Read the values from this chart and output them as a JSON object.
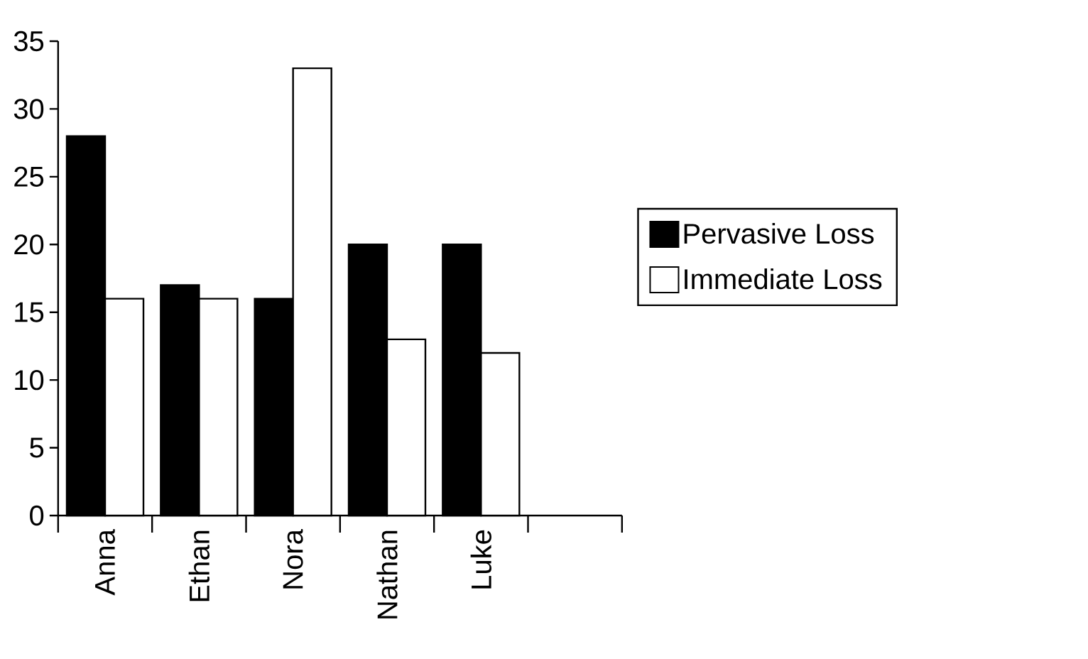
{
  "chart_data": {
    "type": "bar",
    "categories": [
      "Anna",
      "Ethan",
      "Nora",
      "Nathan",
      "Luke",
      null
    ],
    "series": [
      {
        "name": "Pervasive Loss",
        "color": "#000000",
        "values": [
          28,
          17,
          16,
          20,
          20,
          null
        ]
      },
      {
        "name": "Immediate Loss",
        "color": "#ffffff",
        "values": [
          16,
          16,
          33,
          13,
          12,
          null
        ]
      }
    ],
    "ylim": [
      0,
      35
    ],
    "yticks": [
      0,
      5,
      10,
      15,
      20,
      25,
      30,
      35
    ],
    "grid": false,
    "legend": "right"
  }
}
